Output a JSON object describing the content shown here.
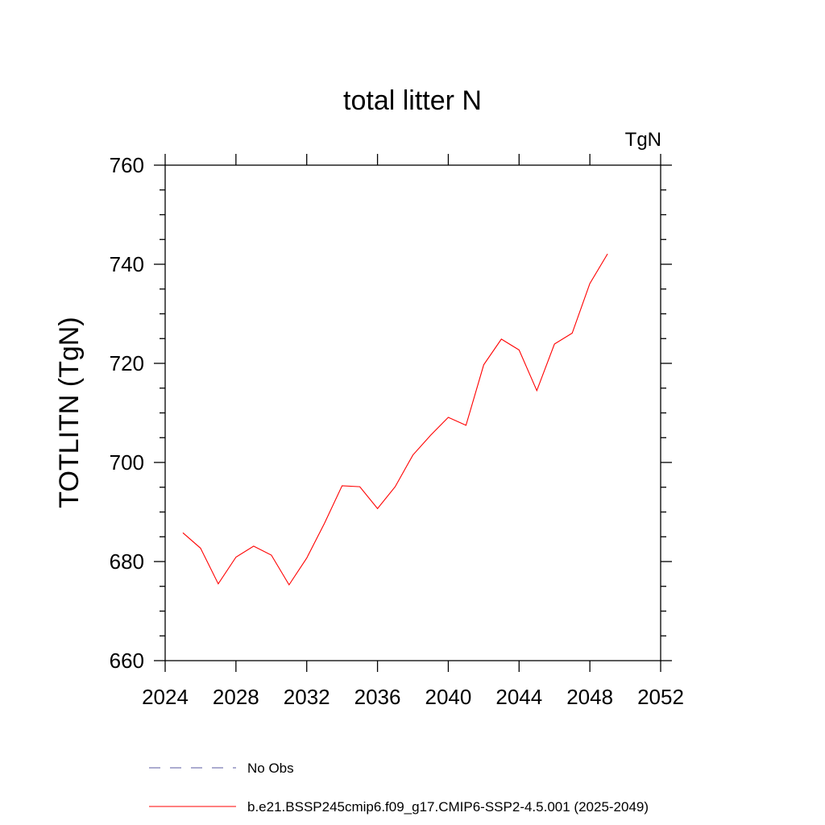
{
  "chart_data": {
    "type": "line",
    "title": "total litter N",
    "units_label": "TgN",
    "xlabel": "",
    "ylabel": "TOTLITN  (TgN)",
    "xlim": [
      2024,
      2052
    ],
    "ylim": [
      660,
      760
    ],
    "x_ticks": [
      2024,
      2028,
      2032,
      2036,
      2040,
      2044,
      2048,
      2052
    ],
    "y_ticks": [
      660,
      680,
      700,
      720,
      740,
      760
    ],
    "grid": false,
    "legend_position": "bottom",
    "series": [
      {
        "name": "No Obs",
        "style": "dashed",
        "color": "#5a5aa0",
        "x": [],
        "values": []
      },
      {
        "name": "b.e21.BSSP245cmip6.f09_g17.CMIP6-SSP2-4.5.001 (2025-2049)",
        "style": "solid",
        "color": "#ff0000",
        "x": [
          2025,
          2026,
          2027,
          2028,
          2029,
          2030,
          2031,
          2032,
          2033,
          2034,
          2035,
          2036,
          2037,
          2038,
          2039,
          2040,
          2041,
          2042,
          2043,
          2044,
          2045,
          2046,
          2047,
          2048,
          2049
        ],
        "values": [
          685.8,
          682.7,
          675.5,
          680.9,
          683.1,
          681.3,
          675.3,
          680.7,
          687.7,
          695.3,
          695.1,
          690.7,
          695.1,
          701.5,
          705.5,
          709.1,
          707.5,
          719.7,
          724.9,
          722.7,
          714.5,
          723.9,
          726.1,
          736.1,
          742.1
        ]
      }
    ]
  }
}
